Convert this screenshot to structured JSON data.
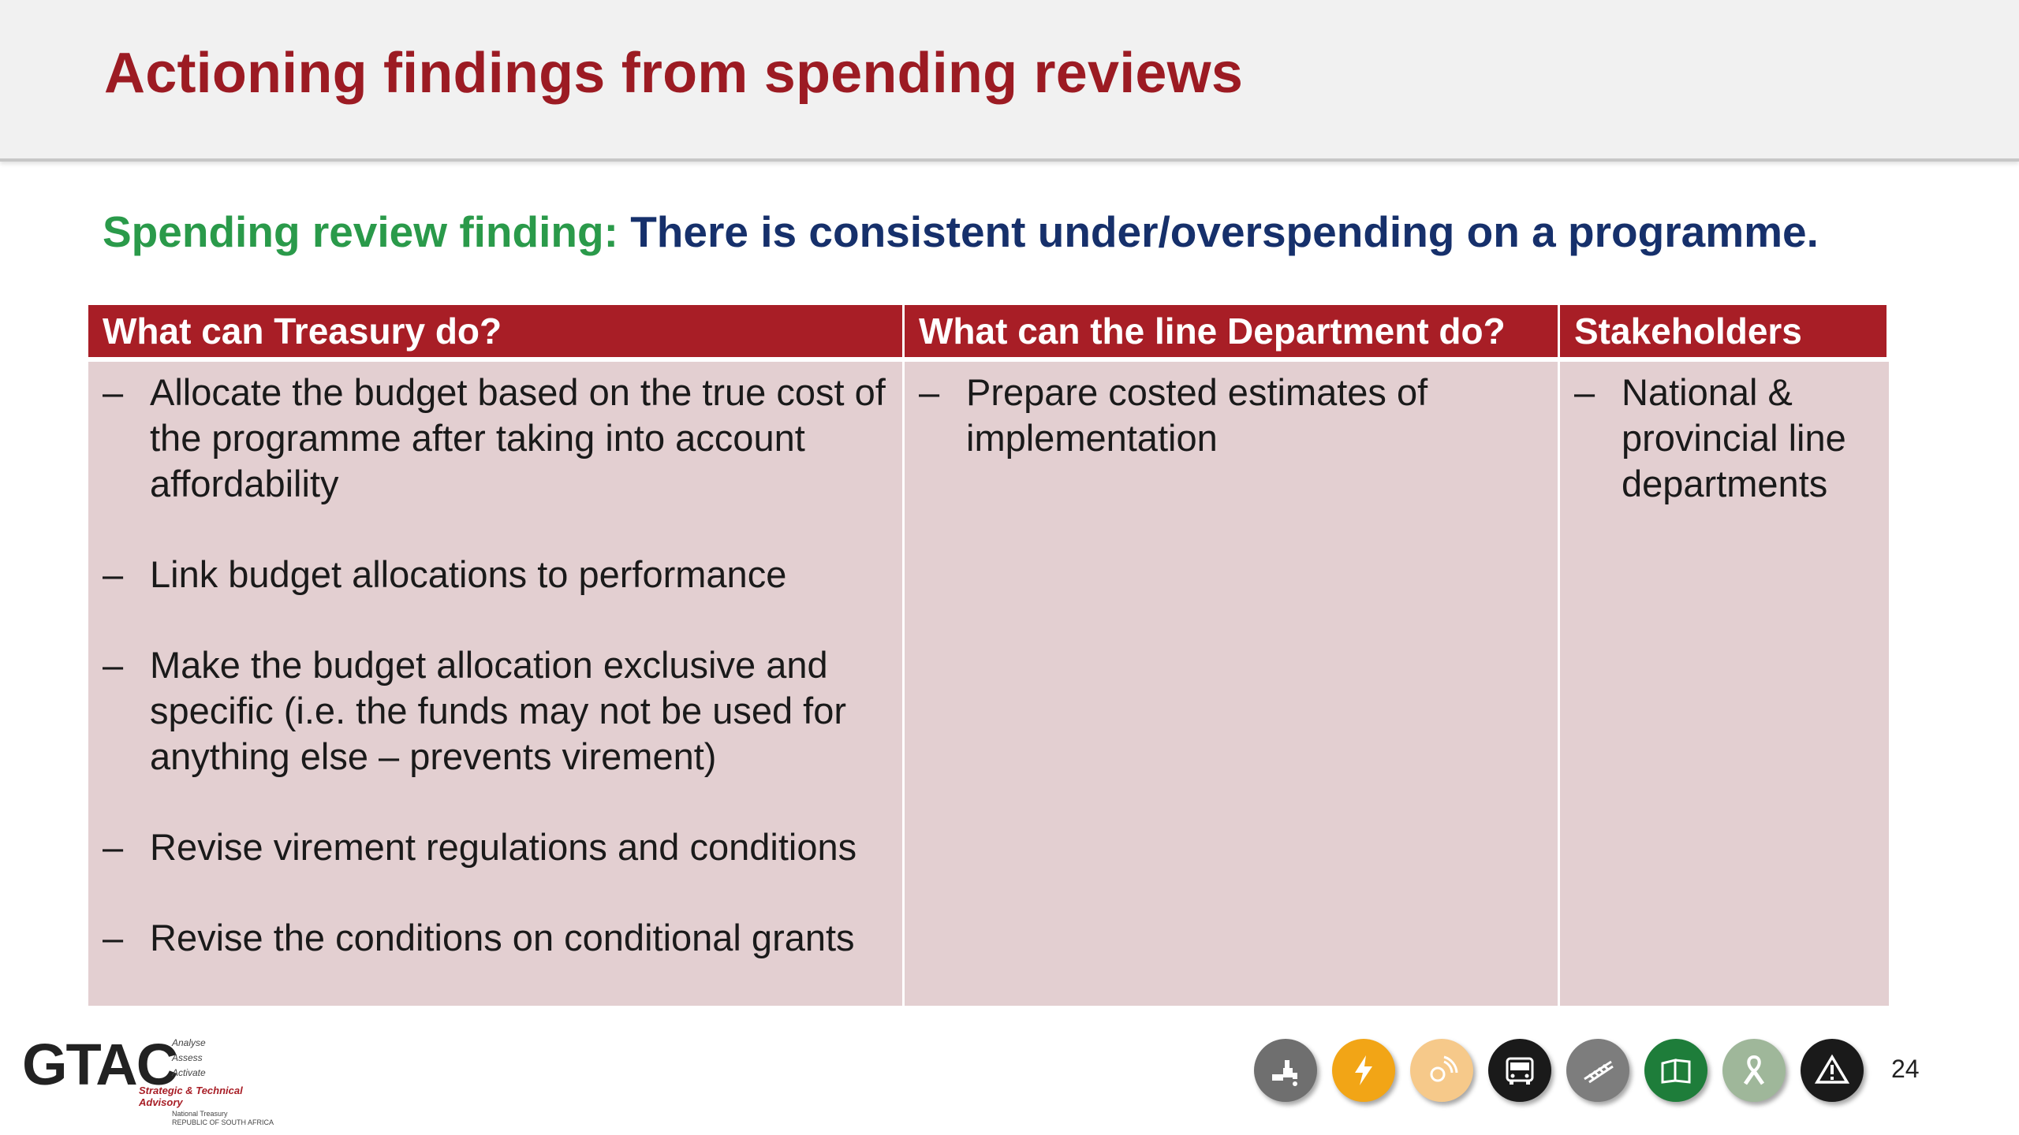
{
  "slide": {
    "title": "Actioning findings from spending reviews",
    "finding_label": "Spending review finding:",
    "finding_text": "There is consistent under/overspending on a programme.",
    "page_number": "24"
  },
  "table": {
    "headers": [
      "What can Treasury do?",
      "What can the line Department do?",
      "Stakeholders"
    ],
    "columns": [
      [
        "Allocate the budget based on the true cost of the programme after taking into account affordability",
        "Link budget allocations to performance",
        "Make the budget allocation exclusive and specific (i.e. the funds may not be used for anything else – prevents virement)",
        "Revise virement regulations and conditions",
        "Revise the conditions on conditional grants"
      ],
      [
        "Prepare costed estimates of implementation"
      ],
      [
        "National & provincial line departments"
      ]
    ],
    "bullet": "–"
  },
  "logo": {
    "wordmark": "GTAC",
    "tagline": [
      "Analyse",
      "Assess",
      "Activate"
    ],
    "strapline": "Strategic & Technical Advisory",
    "sub": [
      "National Treasury",
      "REPUBLIC OF SOUTH AFRICA"
    ]
  },
  "footer_icons": [
    {
      "name": "water-tap-icon",
      "color": "#6f6f6f"
    },
    {
      "name": "electricity-icon",
      "color": "#f2a516"
    },
    {
      "name": "communication-icon",
      "color": "#f6c98a"
    },
    {
      "name": "bus-icon",
      "color": "#1a1a1a"
    },
    {
      "name": "rail-icon",
      "color": "#7d7d7d"
    },
    {
      "name": "education-book-icon",
      "color": "#1e7d3a"
    },
    {
      "name": "health-ribbon-icon",
      "color": "#9fb79a"
    },
    {
      "name": "warning-icon",
      "color": "#1a1a1a"
    }
  ],
  "colors": {
    "title": "#9c1b23",
    "finding_label": "#2a9a4a",
    "finding_text": "#16306b",
    "header_bg": "#a81e26",
    "cell_bg": "#e3cfd1"
  }
}
